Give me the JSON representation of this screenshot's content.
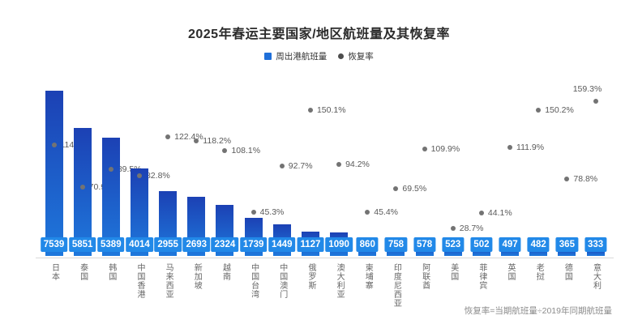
{
  "title": "2025年春运主要国家/地区航班量及其恢复率",
  "legend": {
    "bars_label": "周出港航班量",
    "dots_label": "恢复率"
  },
  "footnote": "恢复率=当期航班量÷2019年同期航班量",
  "colors": {
    "bar_top": "#1c41b4",
    "bar_bottom": "#1e78dc",
    "badge": "#2289e8",
    "legend_square": "#1f6fd9",
    "legend_dot": "#4d4d4d",
    "dot": "#737373",
    "rate_label": "#595959",
    "axis_line": "#d9d9d9",
    "category_label": "#666666",
    "title_color": "#2b2b2b",
    "footnote_color": "#8c8c8c"
  },
  "chart_data": {
    "type": "bar",
    "title": "2025年春运主要国家/地区航班量及其恢复率",
    "categories": [
      "日本",
      "泰国",
      "韩国",
      "中国香港",
      "马来西亚",
      "新加坡",
      "越南",
      "中国台湾",
      "中国澳门",
      "俄罗斯",
      "澳大利亚",
      "柬埔寨",
      "印度尼西亚",
      "阿联酋",
      "美国",
      "菲律宾",
      "英国",
      "老挝",
      "德国",
      "意大利"
    ],
    "series": [
      {
        "name": "周出港航班量",
        "type": "bar",
        "values": [
          7539,
          5851,
          5389,
          4014,
          2955,
          2693,
          2324,
          1739,
          1449,
          1127,
          1090,
          860,
          758,
          578,
          523,
          502,
          497,
          482,
          365,
          333
        ]
      },
      {
        "name": "恢复率",
        "type": "scatter",
        "unit": "%",
        "values": [
          114.0,
          70.9,
          89.5,
          82.8,
          122.4,
          118.2,
          108.1,
          45.3,
          92.7,
          150.1,
          94.2,
          45.4,
          69.5,
          109.9,
          28.7,
          44.1,
          111.9,
          150.2,
          78.8,
          159.3
        ]
      }
    ],
    "xlabel": "",
    "ylabel": "",
    "ylim": [
      0,
      8000
    ],
    "y2lim": [
      0,
      180
    ],
    "grid": false,
    "legend_position": "top",
    "note": "恢复率=当期航班量÷2019年同期航班量"
  }
}
